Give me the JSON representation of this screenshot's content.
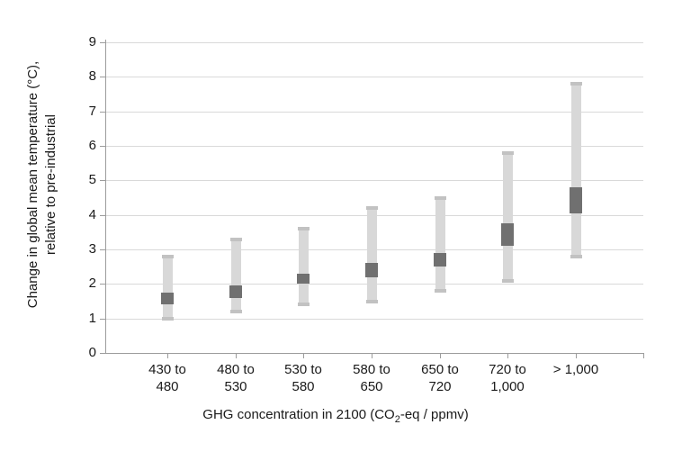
{
  "chart_data": {
    "type": "bar",
    "subtype": "floating-range-bars-with-central-segment",
    "title": "",
    "xlabel_prefix": "GHG concentration in 2100 (CO",
    "xlabel_sub": "2",
    "xlabel_suffix": "-eq / ppmv)",
    "ylabel_line1": "Change in global mean temperature (°C),",
    "ylabel_line2": "relative to pre-industrial",
    "categories": [
      "430 to 480",
      "480 to 530",
      "530 to 580",
      "580 to 650",
      "650 to 720",
      "720 to 1,000",
      "> 1,000"
    ],
    "category_label_lines": [
      {
        "line1": "430 to",
        "line2": "480"
      },
      {
        "line1": "480 to",
        "line2": "530"
      },
      {
        "line1": "530 to",
        "line2": "580"
      },
      {
        "line1": "580 to",
        "line2": "650"
      },
      {
        "line1": "650 to",
        "line2": "720"
      },
      {
        "line1": "720 to",
        "line2": "1,000"
      },
      {
        "line1": "> 1,000",
        "line2": ""
      }
    ],
    "series": [
      {
        "name": "full range",
        "ranges": [
          [
            1.0,
            2.8
          ],
          [
            1.2,
            3.3
          ],
          [
            1.4,
            3.6
          ],
          [
            1.5,
            4.2
          ],
          [
            1.8,
            4.5
          ],
          [
            2.1,
            5.8
          ],
          [
            2.8,
            7.8
          ]
        ]
      },
      {
        "name": "central range",
        "ranges": [
          [
            1.4,
            1.75
          ],
          [
            1.6,
            1.95
          ],
          [
            2.0,
            2.3
          ],
          [
            2.2,
            2.6
          ],
          [
            2.5,
            2.9
          ],
          [
            3.1,
            3.75
          ],
          [
            4.05,
            4.8
          ]
        ]
      }
    ],
    "ylim": [
      0,
      9
    ],
    "yticks": [
      0,
      1,
      2,
      3,
      4,
      5,
      6,
      7,
      8,
      9
    ],
    "grid": "horizontal",
    "legend": "none",
    "colors": {
      "background": "#ffffff",
      "range_bar": "#d8d8d8",
      "range_cap": "#c2c2c2",
      "central_marker": "#707070",
      "gridline": "#d9d9d9",
      "axis": "#9c9c9c",
      "text": "#1a1a1a"
    }
  }
}
